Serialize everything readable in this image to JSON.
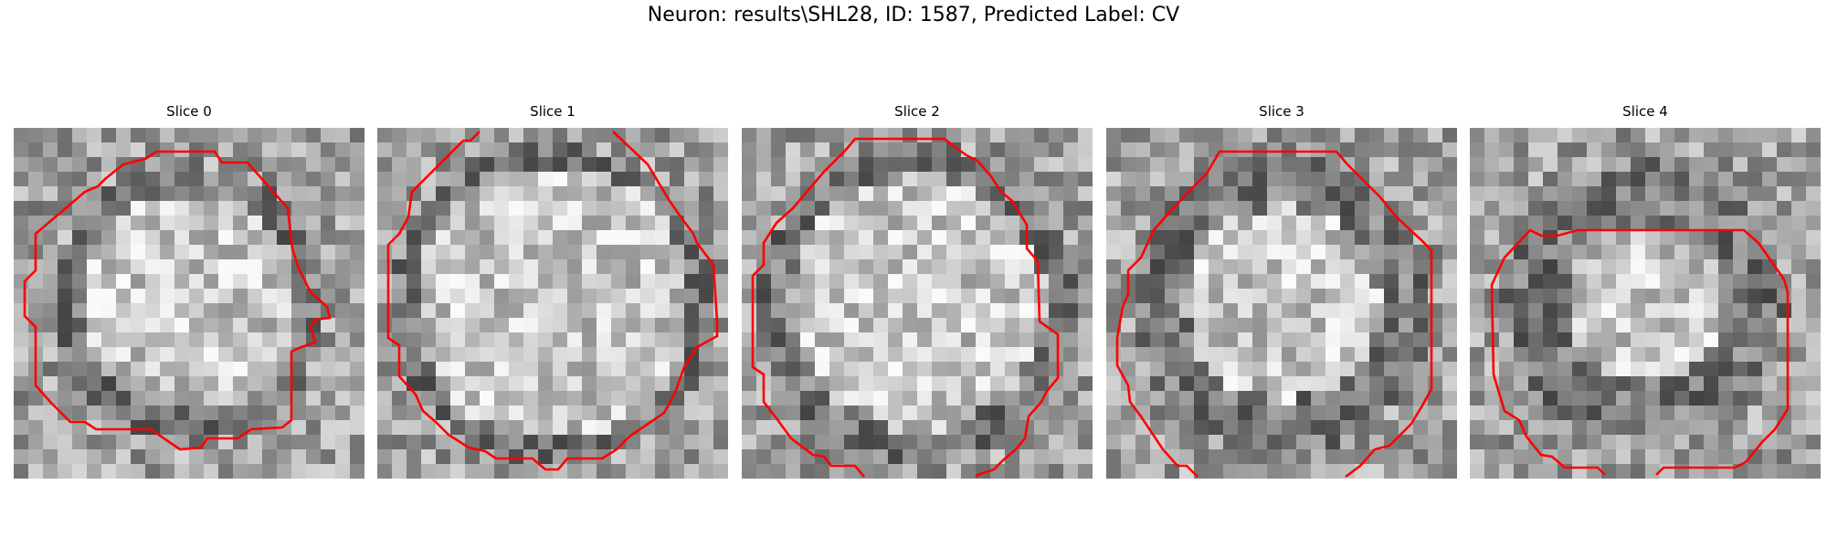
{
  "figure": {
    "title": "Neuron: results\\SHL28, ID: 1587, Predicted Label: CV",
    "contour_color": "#ff0000"
  },
  "slices": [
    {
      "title": "Slice 0",
      "seed": 11,
      "dark_ring": [
        0.62,
        0.8
      ]
    },
    {
      "title": "Slice 1",
      "seed": 23,
      "dark_ring": [
        0.78,
        0.92
      ]
    },
    {
      "title": "Slice 2",
      "seed": 37,
      "dark_ring": [
        0.72,
        0.9
      ]
    },
    {
      "title": "Slice 3",
      "seed": 53,
      "dark_ring": [
        0.55,
        0.85
      ]
    },
    {
      "title": "Slice 4",
      "seed": 71,
      "dark_ring": [
        0.45,
        0.8
      ]
    }
  ]
}
